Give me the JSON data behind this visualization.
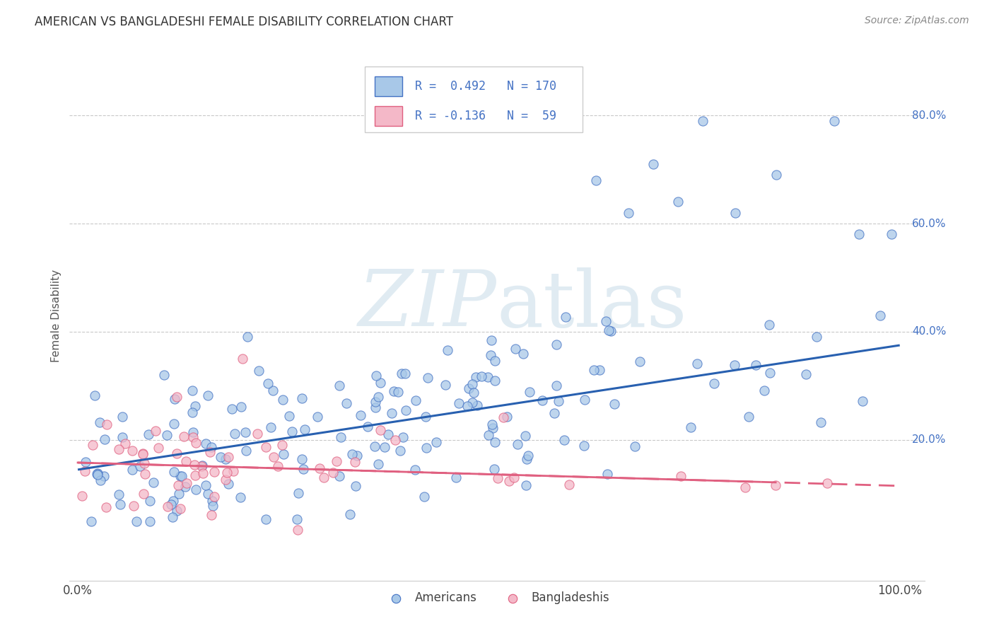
{
  "title": "AMERICAN VS BANGLADESHI FEMALE DISABILITY CORRELATION CHART",
  "source": "Source: ZipAtlas.com",
  "xlabel_bottom_left": "0.0%",
  "xlabel_bottom_right": "100.0%",
  "ylabel": "Female Disability",
  "ytick_labels": [
    "20.0%",
    "40.0%",
    "60.0%",
    "80.0%"
  ],
  "ytick_values": [
    0.2,
    0.4,
    0.6,
    0.8
  ],
  "legend_labels": [
    "Americans",
    "Bangladeshis"
  ],
  "american_color": "#a8c8e8",
  "bangladeshi_color": "#f4b8c8",
  "american_edge_color": "#4472c4",
  "bangladeshi_edge_color": "#e06080",
  "american_line_color": "#2860b0",
  "bangladeshi_line_color": "#e06080",
  "watermark_color": "#d8e8f0",
  "background_color": "#ffffff",
  "grid_color": "#bbbbbb",
  "american_R": 0.492,
  "bangladeshi_R": -0.136,
  "american_N": 170,
  "bangladeshi_N": 59,
  "am_line_x0": 0.0,
  "am_line_y0": 0.145,
  "am_line_x1": 1.0,
  "am_line_y1": 0.375,
  "bd_line_x0": 0.0,
  "bd_line_y0": 0.158,
  "bd_line_x1": 1.0,
  "bd_line_y1": 0.115,
  "ylim_min": -0.06,
  "ylim_max": 0.92,
  "xlim_min": -0.01,
  "xlim_max": 1.03
}
